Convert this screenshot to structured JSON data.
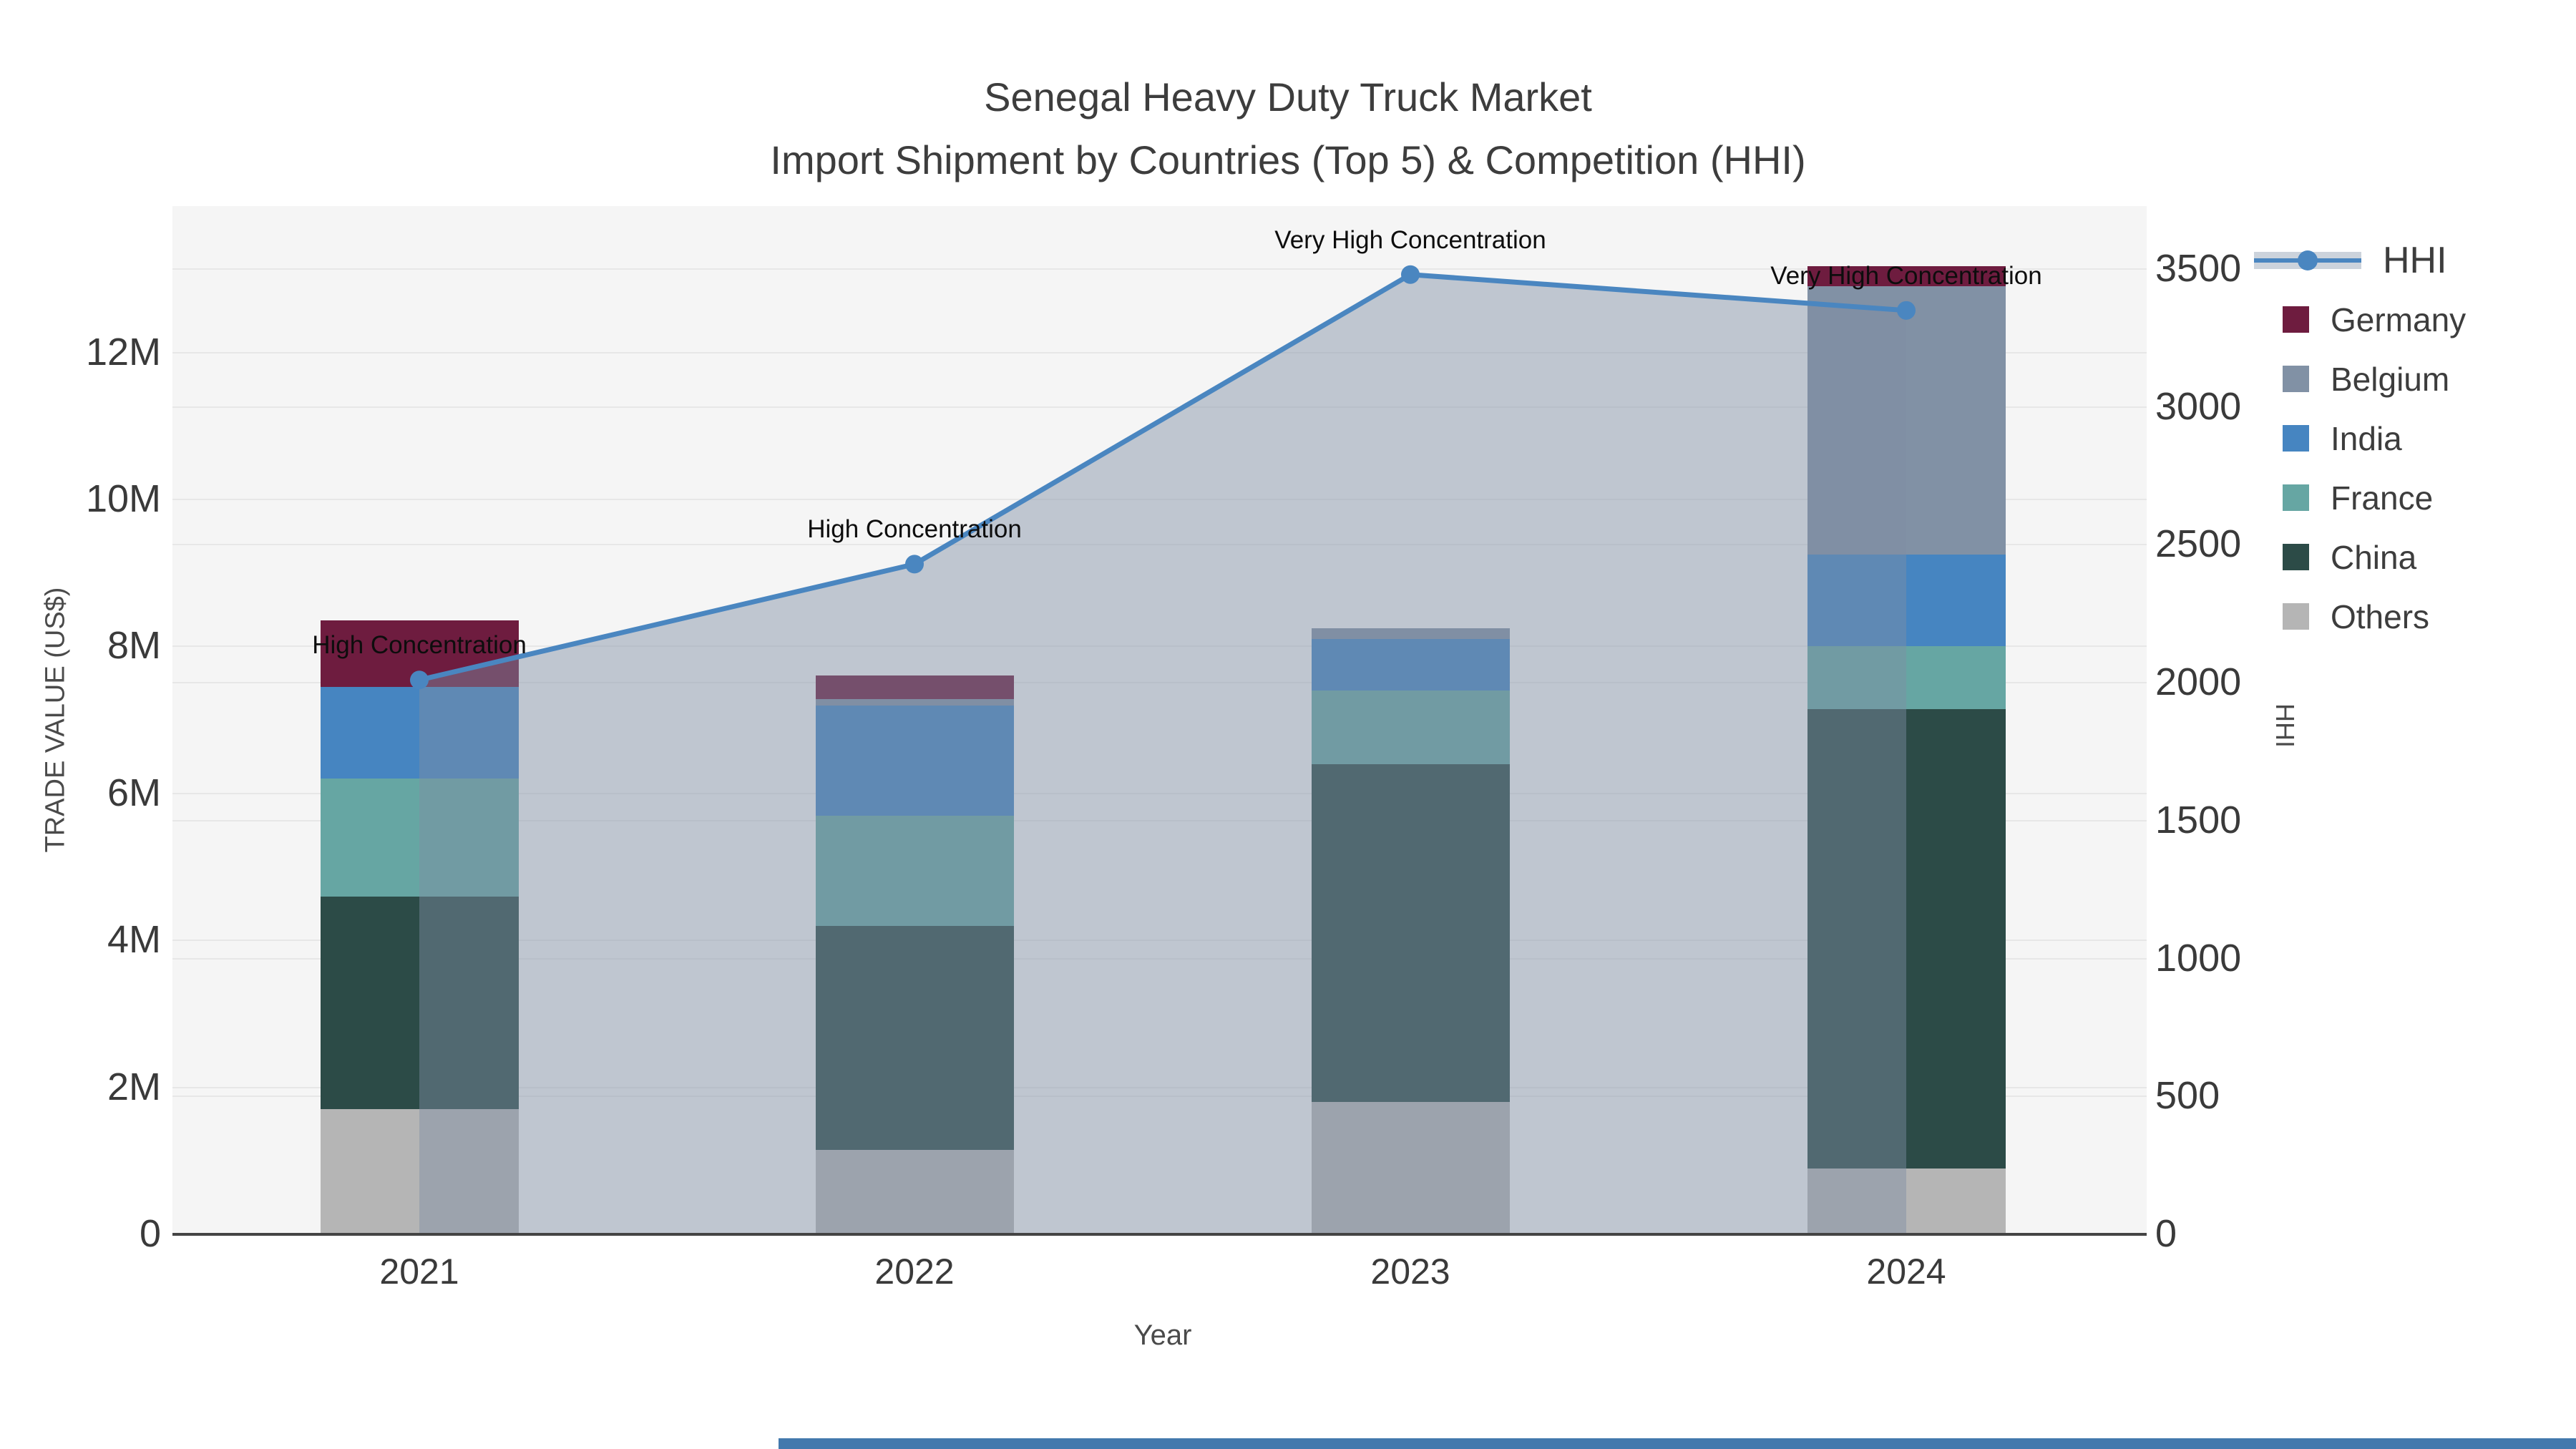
{
  "title": {
    "line1": "Senegal Heavy Duty Truck Market",
    "line2": "Import Shipment by Countries (Top 5) & Competition (HHI)"
  },
  "axes": {
    "x": {
      "title": "Year",
      "ticks": [
        "2021",
        "2022",
        "2023",
        "2024"
      ]
    },
    "left": {
      "title": "TRADE VALUE (US$)",
      "ticks": [
        "0",
        "2M",
        "4M",
        "6M",
        "8M",
        "10M",
        "12M"
      ]
    },
    "right": {
      "title": "HHI",
      "ticks": [
        "0",
        "500",
        "1000",
        "1500",
        "2000",
        "2500",
        "3000",
        "3500"
      ]
    }
  },
  "legend": {
    "items": [
      {
        "label": "HHI",
        "type": "line"
      },
      {
        "label": "Germany",
        "type": "swatch",
        "color": "#6E1C3F"
      },
      {
        "label": "Belgium",
        "type": "swatch",
        "color": "#8191A5"
      },
      {
        "label": "India",
        "type": "swatch",
        "color": "#4685C1"
      },
      {
        "label": "France",
        "type": "swatch",
        "color": "#66A6A3"
      },
      {
        "label": "China",
        "type": "swatch",
        "color": "#2C4B47"
      },
      {
        "label": "Others",
        "type": "swatch",
        "color": "#B5B5B5"
      }
    ]
  },
  "annotations": [
    {
      "year": "2021",
      "text": "High Concentration"
    },
    {
      "year": "2022",
      "text": "High Concentration"
    },
    {
      "year": "2023",
      "text": "Very High Concentration"
    },
    {
      "year": "2024",
      "text": "Very High Concentration"
    }
  ],
  "colors": {
    "hhi_line": "#4A86C0",
    "hhi_area_fill": "rgba(127,142,163,0.45)",
    "plot_background": "#f5f5f5",
    "gridline": "#e7e7e7",
    "axis_line": "#444444"
  },
  "chart_data": {
    "type": "bar+line",
    "title": "Senegal Heavy Duty Truck Market — Import Shipment by Countries (Top 5) & Competition (HHI)",
    "categories": [
      "2021",
      "2022",
      "2023",
      "2024"
    ],
    "bar_unit": "million US$",
    "stack_order_bottom_to_top": [
      "Others",
      "China",
      "France",
      "India",
      "Belgium",
      "Germany"
    ],
    "series": [
      {
        "name": "Others",
        "color": "#B5B5B5",
        "values": [
          1.7,
          1.15,
          1.8,
          0.9
        ]
      },
      {
        "name": "China",
        "color": "#2C4B47",
        "values": [
          2.9,
          3.05,
          4.6,
          6.25
        ]
      },
      {
        "name": "France",
        "color": "#66A6A3",
        "values": [
          1.6,
          1.5,
          1.0,
          0.85
        ]
      },
      {
        "name": "India",
        "color": "#4685C1",
        "values": [
          1.25,
          1.5,
          0.7,
          1.25
        ]
      },
      {
        "name": "Belgium",
        "color": "#8191A5",
        "values": [
          0.0,
          0.08,
          0.15,
          3.65
        ]
      },
      {
        "name": "Germany",
        "color": "#6E1C3F",
        "values": [
          0.9,
          0.32,
          0.0,
          0.27
        ]
      }
    ],
    "bar_totals": [
      8.35,
      7.6,
      8.25,
      13.17
    ],
    "line": {
      "name": "HHI",
      "axis": "right",
      "values": [
        2010,
        2430,
        3480,
        3350
      ],
      "area_fill": true
    },
    "xlabel": "Year",
    "ylabel_left": "TRADE VALUE (US$)",
    "ylabel_right": "HHI",
    "ylim_left_millions": [
      0,
      14
    ],
    "ylim_right": [
      0,
      3728
    ],
    "grid": true,
    "legend_position": "right"
  }
}
